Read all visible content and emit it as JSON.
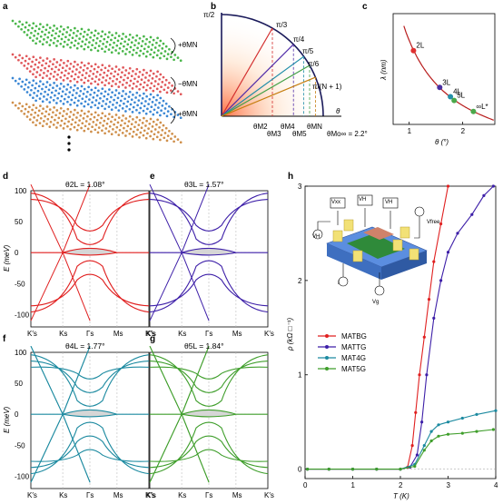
{
  "panel_labels": [
    "a",
    "b",
    "c",
    "d",
    "e",
    "f",
    "g",
    "h"
  ],
  "panel_a": {
    "twist_labels": [
      "+θMN",
      "−θMN",
      "+θMN"
    ],
    "layer_colors": [
      "#49b649",
      "#e0575a",
      "#3b87d4",
      "#cf8f4a"
    ],
    "ellipsis": "•\n•\n•"
  },
  "panel_b": {
    "angle_labels": [
      "π/2",
      "π/3",
      "π/4",
      "π/5",
      "π/6",
      "π/(N + 1)"
    ],
    "x_label": "θ",
    "bottom_labels": [
      "θM2",
      "θM3",
      "θM4",
      "θM5",
      "θMN",
      "θMo∞ = 2.2°"
    ],
    "line_colors": [
      "#d32f2f",
      "#512da8",
      "#1e8ca8",
      "#43a047",
      "#c57d0e"
    ]
  },
  "chart_data": [
    {
      "panel": "c",
      "type": "line",
      "xlabel": "θ (°)",
      "ylabel": "λ (nm)",
      "xlim": [
        0.7,
        2.6
      ],
      "x_ticks": [
        1,
        2
      ],
      "curve_color": "#b81c1c",
      "points": [
        {
          "label": "2L",
          "x": 1.08,
          "y": 13.0,
          "color": "#e03030"
        },
        {
          "label": "3L",
          "x": 1.57,
          "y": 9.0,
          "color": "#4a2fa0"
        },
        {
          "label": "4L",
          "x": 1.77,
          "y": 8.0,
          "color": "#2390a8"
        },
        {
          "label": "5L",
          "x": 1.84,
          "y": 7.6,
          "color": "#4aa84a"
        },
        {
          "label": "∞L*",
          "x": 2.2,
          "y": 6.4,
          "color": "#4aa84a"
        }
      ]
    },
    {
      "panel": "d",
      "type": "line",
      "title": "θ2L = 1.08°",
      "ylabel": "E (meV)",
      "ylim": [
        -120,
        100
      ],
      "y_ticks": [
        -100,
        -50,
        0,
        50,
        100
      ],
      "k_labels": [
        "K′s",
        "Ks",
        "Γs",
        "Ms",
        "K′s"
      ],
      "color": "#e01e1e",
      "flat_band": true
    },
    {
      "panel": "e",
      "type": "line",
      "title": "θ3L = 1.57°",
      "ylim": [
        -120,
        100
      ],
      "k_labels": [
        "K′s",
        "Ks",
        "Γs",
        "Ms",
        "K′s"
      ],
      "color": "#3d1fa8",
      "flat_band": true
    },
    {
      "panel": "f",
      "type": "line",
      "title": "θ4L = 1.77°",
      "ylabel": "E (meV)",
      "ylim": [
        -120,
        100
      ],
      "y_ticks": [
        -100,
        -50,
        0,
        50,
        100
      ],
      "k_labels": [
        "K′s",
        "Ks",
        "Γs",
        "Ms",
        "K′s"
      ],
      "color": "#1c8aa0",
      "flat_band": true
    },
    {
      "panel": "g",
      "type": "line",
      "title": "θ5L = 1.84°",
      "ylim": [
        -120,
        100
      ],
      "k_labels": [
        "K′s",
        "Ks",
        "Γs",
        "Ms",
        "K′s"
      ],
      "color": "#3f9e2b",
      "flat_band": true
    },
    {
      "panel": "h",
      "type": "line",
      "xlabel": "T (K)",
      "ylabel": "ρ (kΩ □⁻¹)",
      "xlim": [
        0,
        4
      ],
      "ylim": [
        -0.1,
        3
      ],
      "x_ticks": [
        0,
        1,
        2,
        3,
        4
      ],
      "y_ticks": [
        0,
        1,
        2,
        3
      ],
      "series": [
        {
          "name": "MATBG",
          "color": "#e02020",
          "points": [
            [
              0.05,
              0
            ],
            [
              0.5,
              0
            ],
            [
              1,
              0
            ],
            [
              1.5,
              0
            ],
            [
              2,
              0
            ],
            [
              2.15,
              0.02
            ],
            [
              2.25,
              0.25
            ],
            [
              2.32,
              0.6
            ],
            [
              2.4,
              1.0
            ],
            [
              2.5,
              1.4
            ],
            [
              2.6,
              1.8
            ],
            [
              2.7,
              2.2
            ],
            [
              2.85,
              2.6
            ],
            [
              3.0,
              3.0
            ]
          ]
        },
        {
          "name": "MATTG",
          "color": "#3d1fa8",
          "points": [
            [
              0.05,
              0
            ],
            [
              0.5,
              0
            ],
            [
              1,
              0
            ],
            [
              1.5,
              0
            ],
            [
              2,
              0
            ],
            [
              2.2,
              0.02
            ],
            [
              2.35,
              0.15
            ],
            [
              2.45,
              0.5
            ],
            [
              2.55,
              1.0
            ],
            [
              2.7,
              1.6
            ],
            [
              2.85,
              2.0
            ],
            [
              3.0,
              2.3
            ],
            [
              3.2,
              2.5
            ],
            [
              3.5,
              2.7
            ],
            [
              3.75,
              2.9
            ],
            [
              3.95,
              3.0
            ]
          ]
        },
        {
          "name": "MAT4G",
          "color": "#1c8aa0",
          "points": [
            [
              0.05,
              0
            ],
            [
              0.5,
              0
            ],
            [
              1,
              0
            ],
            [
              1.5,
              0
            ],
            [
              2,
              0
            ],
            [
              2.3,
              0.05
            ],
            [
              2.5,
              0.25
            ],
            [
              2.65,
              0.4
            ],
            [
              2.8,
              0.47
            ],
            [
              3.0,
              0.5
            ],
            [
              3.3,
              0.54
            ],
            [
              3.6,
              0.58
            ],
            [
              4.0,
              0.62
            ]
          ]
        },
        {
          "name": "MAT5G",
          "color": "#3f9e2b",
          "points": [
            [
              0.05,
              0
            ],
            [
              0.5,
              0
            ],
            [
              1,
              0
            ],
            [
              1.5,
              0
            ],
            [
              2,
              0
            ],
            [
              2.3,
              0.03
            ],
            [
              2.5,
              0.2
            ],
            [
              2.65,
              0.3
            ],
            [
              2.8,
              0.35
            ],
            [
              3.0,
              0.37
            ],
            [
              3.3,
              0.38
            ],
            [
              3.6,
              0.4
            ],
            [
              3.95,
              0.42
            ]
          ]
        }
      ],
      "inset_labels": [
        "VH",
        "Vxx",
        "VH",
        "I",
        "Vfree",
        "VH",
        "Vg"
      ]
    }
  ]
}
